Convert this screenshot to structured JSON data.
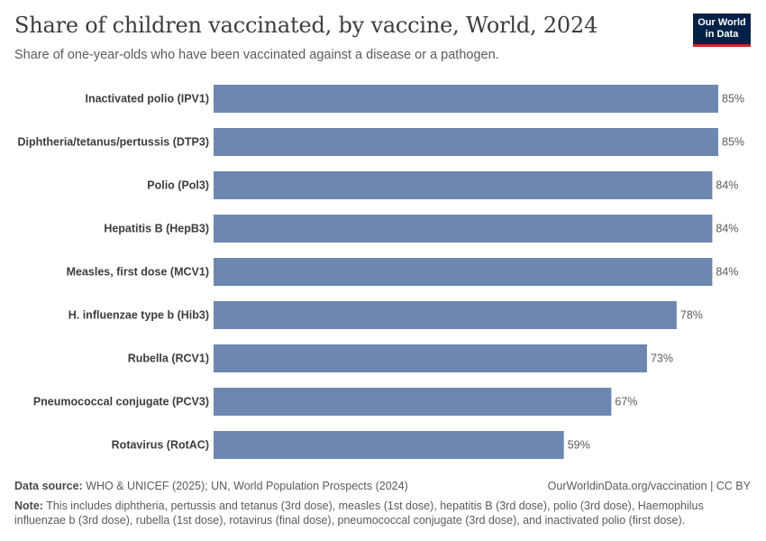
{
  "header": {
    "title": "Share of children vaccinated, by vaccine, World, 2024",
    "subtitle": "Share of one-year-olds who have been vaccinated against a disease or a pathogen.",
    "logo_line1": "Our World",
    "logo_line2": "in Data"
  },
  "chart_data": {
    "type": "bar",
    "orientation": "horizontal",
    "categories": [
      "Inactivated polio (IPV1)",
      "Diphtheria/tetanus/pertussis (DTP3)",
      "Polio (Pol3)",
      "Hepatitis B (HepB3)",
      "Measles, first dose (MCV1)",
      "H. influenzae type b (Hib3)",
      "Rubella (RCV1)",
      "Pneumococcal conjugate (PCV3)",
      "Rotavirus (RotAC)"
    ],
    "values": [
      85,
      85,
      84,
      84,
      84,
      78,
      73,
      67,
      59
    ],
    "value_labels": [
      "85%",
      "85%",
      "84%",
      "84%",
      "84%",
      "78%",
      "73%",
      "67%",
      "59%"
    ],
    "xlim": [
      0,
      85
    ],
    "bar_color": "#6d87b1",
    "grid": false
  },
  "footer": {
    "source_label": "Data source:",
    "source_text": " WHO & UNICEF (2025); UN, World Population Prospects (2024)",
    "url_text": "OurWorldinData.org/vaccination | CC BY",
    "note_label": "Note:",
    "note_text": " This includes diphtheria, pertussis and tetanus (3rd dose), measles (1st dose), hepatitis B (3rd dose), polio (3rd dose), Haemophilus influenzae b (3rd dose), rubella (1st dose), rotavirus (final dose), pneumococcal conjugate (3rd dose), and inactivated polio (first dose)."
  }
}
